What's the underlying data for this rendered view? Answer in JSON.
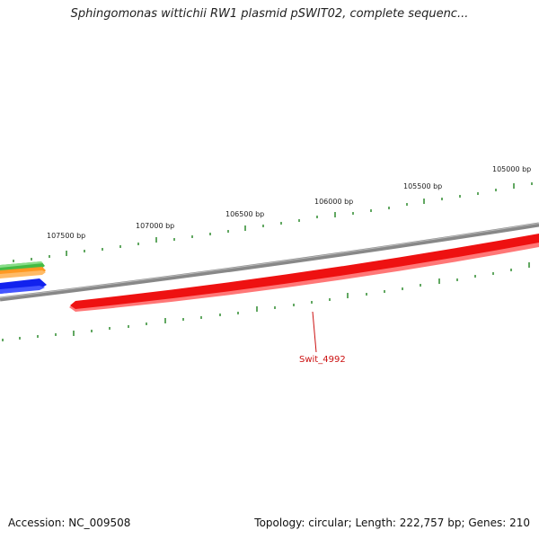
{
  "header": {
    "title": "Sphingomonas wittichii RW1 plasmid pSWIT02, complete sequenc..."
  },
  "footer": {
    "accession": "Accession: NC_009508",
    "summary": "Topology: circular; Length: 222,757 bp; Genes: 210"
  },
  "map": {
    "scale_labels": [
      "107500 bp",
      "107000 bp",
      "106500 bp",
      "106000 bp",
      "105500 bp",
      "105000 bp"
    ],
    "genes": [
      {
        "name": "Swit_4992",
        "color": "#ee1111"
      }
    ],
    "colors": {
      "backbone": "#888888",
      "tick": "#2e8b2e",
      "gene_red": "#ee1111",
      "gene_red_edge": "#ff7777",
      "gene_green": "#44bb44",
      "gene_orange": "#ff9922",
      "gene_blue": "#1122ee",
      "label_red": "#cc1111"
    }
  }
}
